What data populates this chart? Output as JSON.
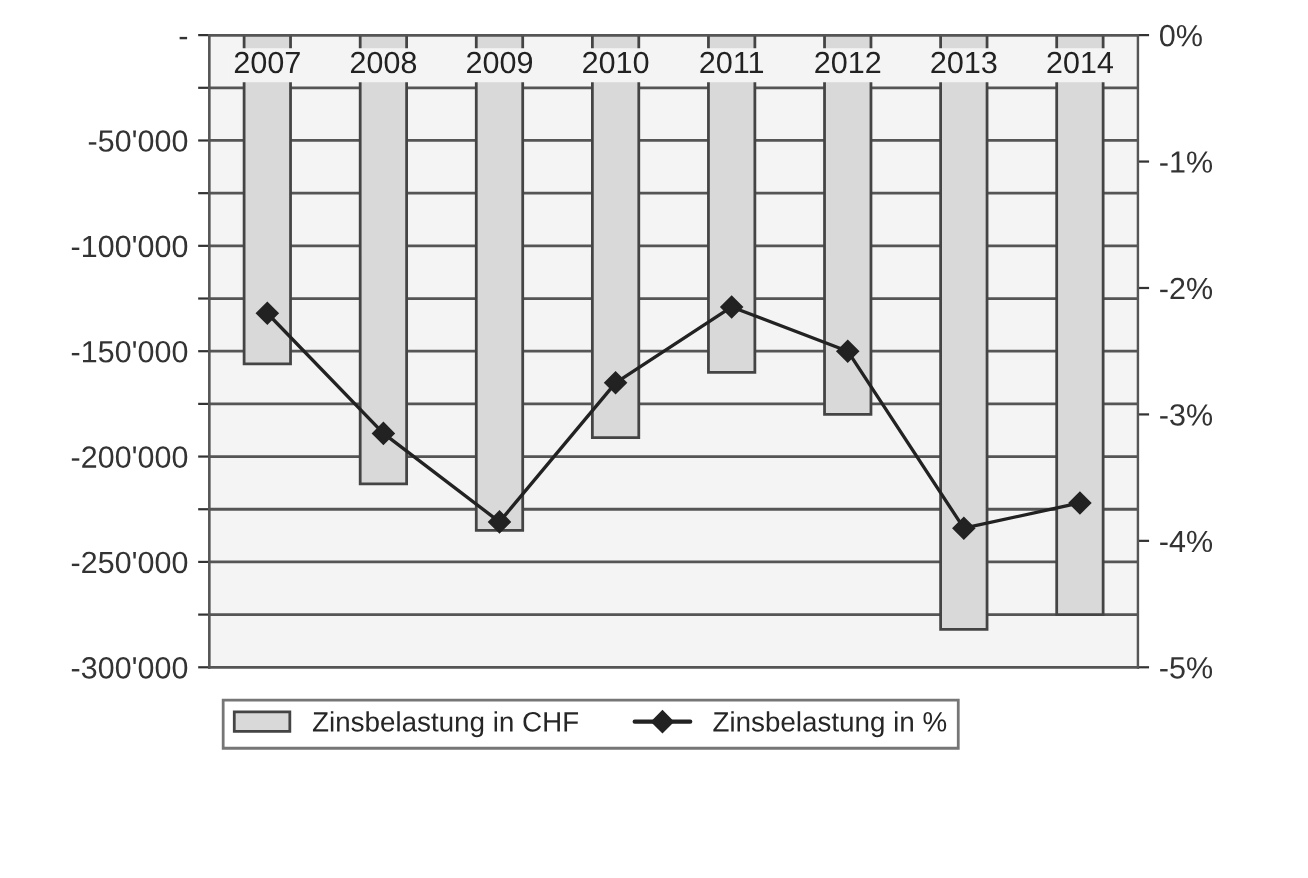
{
  "chart_data": {
    "type": "bar",
    "categories": [
      "2007",
      "2008",
      "2009",
      "2010",
      "2011",
      "2012",
      "2013",
      "2014"
    ],
    "series": [
      {
        "name": "Zinsbelastung in CHF",
        "color": "#d9d9d9",
        "values": [
          -156000,
          -213000,
          -235000,
          -191000,
          -160000,
          -180000,
          -282000,
          -275000
        ]
      },
      {
        "name": "Zinsbelastung in %",
        "type": "line",
        "axis": "y2",
        "color": "#222222",
        "marker": "diamond",
        "values": [
          -2.2,
          -3.15,
          -3.85,
          -2.75,
          -2.15,
          -2.5,
          -3.9,
          -3.7
        ]
      }
    ],
    "ylim": [
      -300000,
      0
    ],
    "yticks": [
      {
        "value": 0,
        "label": "-"
      },
      {
        "value": -25000,
        "label": null
      },
      {
        "value": -50000,
        "label": "-50'000"
      },
      {
        "value": -75000,
        "label": null
      },
      {
        "value": -100000,
        "label": "-100'000"
      },
      {
        "value": -125000,
        "label": null
      },
      {
        "value": -150000,
        "label": "-150'000"
      },
      {
        "value": -175000,
        "label": null
      },
      {
        "value": -200000,
        "label": "-200'000"
      },
      {
        "value": -225000,
        "label": null
      },
      {
        "value": -250000,
        "label": "-250'000"
      },
      {
        "value": -275000,
        "label": null
      },
      {
        "value": -300000,
        "label": "-300'000"
      }
    ],
    "y2lim": [
      -5,
      0
    ],
    "y2ticks": [
      {
        "value": 0,
        "label": "0%"
      },
      {
        "value": -1,
        "label": "-1%"
      },
      {
        "value": -2,
        "label": "-2%"
      },
      {
        "value": -3,
        "label": "-3%"
      },
      {
        "value": -4,
        "label": "-4%"
      },
      {
        "value": -5,
        "label": "-5%"
      }
    ],
    "grid": "y",
    "legend": "bottom left"
  }
}
